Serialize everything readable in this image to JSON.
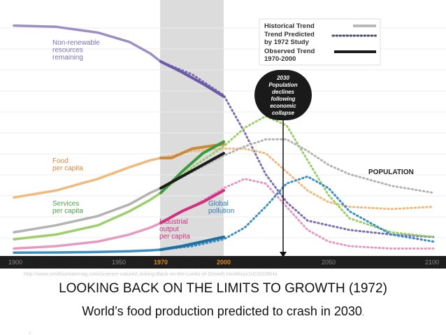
{
  "chart_data": {
    "type": "line",
    "xlim": [
      1900,
      2100
    ],
    "ylim": [
      0,
      100
    ],
    "x_ticks": [
      1900,
      1950,
      1970,
      2000,
      2050,
      2100
    ],
    "highlight_ticks": [
      1970,
      2000
    ],
    "shaded_range": [
      1970,
      2000
    ],
    "marker_year": 2030,
    "grid": true,
    "legend": {
      "position": "top-right",
      "entries": [
        {
          "label": "Historical Trend",
          "style": "solid",
          "color": "#b9b9b9"
        },
        {
          "label": "Trend Predicted by 1972 Study",
          "style": "dotted",
          "color": "#4a4a6a"
        },
        {
          "label": "Observed Trend 1970-2000",
          "style": "solid",
          "color": "#1c1c1c"
        }
      ]
    },
    "callout": [
      "2030",
      "Population",
      "declines",
      "following",
      "economic",
      "collapse"
    ],
    "series": [
      {
        "name": "Non-renewable resources remaining",
        "label_lines": [
          "Non-renewable",
          "resources",
          "remaining"
        ],
        "color": "#9c8fc6",
        "historical": [
          [
            1900,
            98
          ],
          [
            1920,
            97.5
          ],
          [
            1940,
            95
          ],
          [
            1955,
            91
          ],
          [
            1965,
            86
          ],
          [
            1970,
            82.5
          ]
        ],
        "observed": [
          [
            1970,
            82.5
          ],
          [
            1980,
            78
          ],
          [
            1990,
            73
          ],
          [
            2000,
            67.5
          ]
        ],
        "predicted": [
          [
            1970,
            82.5
          ],
          [
            1985,
            77
          ],
          [
            2000,
            68
          ],
          [
            2010,
            52
          ],
          [
            2020,
            34
          ],
          [
            2030,
            22
          ],
          [
            2040,
            14
          ],
          [
            2060,
            10
          ],
          [
            2080,
            8
          ],
          [
            2100,
            7
          ]
        ]
      },
      {
        "name": "Food per capita",
        "label_lines": [
          "Food",
          "per capita"
        ],
        "color": "#f2b97d",
        "historical": [
          [
            1900,
            24
          ],
          [
            1920,
            27
          ],
          [
            1940,
            32
          ],
          [
            1955,
            37
          ],
          [
            1965,
            40
          ],
          [
            1970,
            41
          ]
        ],
        "observed": [
          [
            1970,
            41
          ],
          [
            1975,
            41
          ],
          [
            1985,
            45
          ],
          [
            2000,
            47
          ]
        ],
        "predicted": [
          [
            1970,
            41
          ],
          [
            1985,
            44
          ],
          [
            2000,
            45
          ],
          [
            2010,
            45
          ],
          [
            2020,
            43
          ],
          [
            2030,
            35
          ],
          [
            2040,
            27
          ],
          [
            2050,
            22
          ],
          [
            2060,
            20
          ],
          [
            2080,
            19
          ],
          [
            2100,
            20
          ]
        ]
      },
      {
        "name": "Services per capita",
        "label_lines": [
          "Services",
          "per capita"
        ],
        "color": "#9ccf6b",
        "historical": [
          [
            1900,
            6
          ],
          [
            1920,
            8
          ],
          [
            1940,
            12
          ],
          [
            1955,
            18
          ],
          [
            1965,
            23
          ],
          [
            1970,
            26
          ]
        ],
        "observed": [
          [
            1970,
            26
          ],
          [
            1980,
            35
          ],
          [
            1990,
            43
          ],
          [
            2000,
            48
          ]
        ],
        "predicted": [
          [
            1970,
            26
          ],
          [
            1985,
            37
          ],
          [
            2000,
            46
          ],
          [
            2010,
            54
          ],
          [
            2020,
            59
          ],
          [
            2030,
            55
          ],
          [
            2040,
            40
          ],
          [
            2050,
            25
          ],
          [
            2060,
            15
          ],
          [
            2080,
            9
          ],
          [
            2100,
            7
          ]
        ]
      },
      {
        "name": "Industrial output per capita",
        "label_lines": [
          "Industrial",
          "output",
          "per capita"
        ],
        "color": "#e69ac2",
        "historical": [
          [
            1900,
            2
          ],
          [
            1920,
            3
          ],
          [
            1940,
            5
          ],
          [
            1955,
            8
          ],
          [
            1965,
            11
          ],
          [
            1970,
            13
          ]
        ],
        "observed": [
          [
            1970,
            13
          ],
          [
            1980,
            18
          ],
          [
            1990,
            22
          ],
          [
            2000,
            27
          ]
        ],
        "predicted": [
          [
            1970,
            13
          ],
          [
            1985,
            20
          ],
          [
            2000,
            28
          ],
          [
            2010,
            32
          ],
          [
            2020,
            30
          ],
          [
            2030,
            20
          ],
          [
            2040,
            10
          ],
          [
            2050,
            5
          ],
          [
            2060,
            3
          ],
          [
            2080,
            2
          ],
          [
            2100,
            2
          ]
        ]
      },
      {
        "name": "Population",
        "label_lines": [
          "POPULATION"
        ],
        "color": "#b3b3b3",
        "historical": [
          [
            1900,
            9
          ],
          [
            1920,
            12
          ],
          [
            1940,
            16
          ],
          [
            1955,
            21
          ],
          [
            1965,
            26
          ],
          [
            1970,
            28
          ]
        ],
        "observed": [
          [
            1970,
            28
          ],
          [
            1980,
            33
          ],
          [
            1990,
            38
          ],
          [
            2000,
            43
          ]
        ],
        "predicted": [
          [
            1970,
            28
          ],
          [
            1985,
            35
          ],
          [
            2000,
            42
          ],
          [
            2010,
            46
          ],
          [
            2020,
            49
          ],
          [
            2030,
            49
          ],
          [
            2040,
            44
          ],
          [
            2050,
            38
          ],
          [
            2060,
            34
          ],
          [
            2080,
            29
          ],
          [
            2100,
            26
          ]
        ]
      },
      {
        "name": "Global pollution",
        "label_lines": [
          "Global",
          "pollution"
        ],
        "color": "#3a8fc4",
        "historical": [
          [
            1900,
            0.2
          ],
          [
            1920,
            0.3
          ],
          [
            1940,
            0.5
          ],
          [
            1955,
            0.8
          ],
          [
            1965,
            1.2
          ],
          [
            1970,
            1.5
          ]
        ],
        "observed": [
          [
            1970,
            1.5
          ],
          [
            1980,
            3
          ],
          [
            1990,
            5
          ],
          [
            2000,
            7
          ]
        ],
        "predicted": [
          [
            1970,
            1.5
          ],
          [
            1985,
            3
          ],
          [
            2000,
            6
          ],
          [
            2010,
            11
          ],
          [
            2020,
            20
          ],
          [
            2030,
            30
          ],
          [
            2040,
            33
          ],
          [
            2050,
            28
          ],
          [
            2060,
            18
          ],
          [
            2080,
            8
          ],
          [
            2100,
            5
          ]
        ]
      }
    ]
  },
  "source_url": "http://www.smithsonianmag.com/science-nature/Looking-Back-on-the-Limits-of-Growth.html#ixzz1rGSD2BHa",
  "title": "LOOKING BACK ON THE LIMITS TO GROWTH (1972)",
  "subtitle_main": "World’s  food production predicted to crash in 2030",
  "subtitle_period": ".",
  "footnote_dot": "."
}
